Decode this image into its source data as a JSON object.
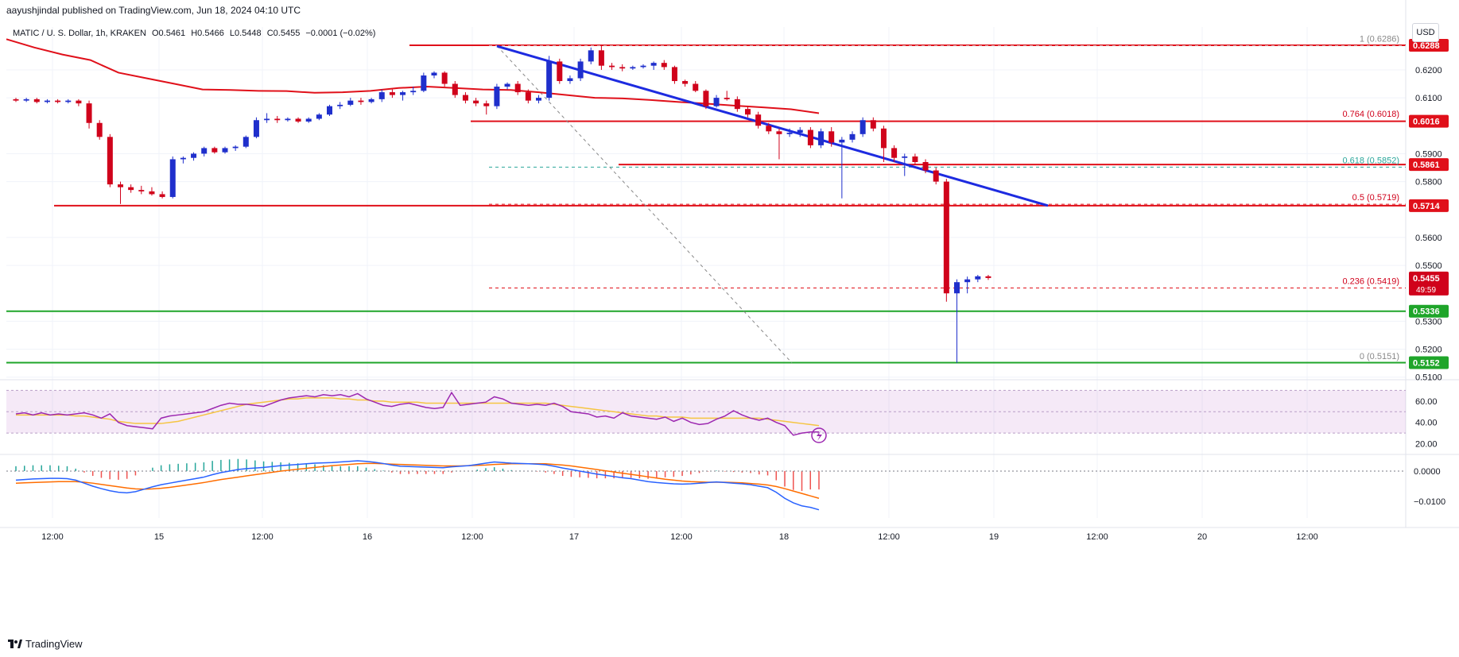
{
  "header": {
    "publisher": "aayushjindal published on TradingView.com, Jun 18, 2024 04:10 UTC"
  },
  "symbol": {
    "name": "MATIC / U. S. Dollar, 1h, KRAKEN",
    "open": "O0.5461",
    "high": "H0.5466",
    "low": "L0.5448",
    "close": "C0.5455",
    "change": "−0.0001 (−0.02%)"
  },
  "currency": "USD",
  "watermark": "TradingView",
  "colors": {
    "up": "#1f2fcc",
    "down": "#d0021b",
    "resistance": "#e0101a",
    "support": "#1fa52a",
    "trend": "#1d2be0",
    "ma": "#e0101a",
    "rsi": "#9c27b0",
    "rsi_ma": "#f5c542",
    "macd": "#2962ff",
    "signal": "#ff6d00"
  },
  "chart_data": {
    "type": "candlestick",
    "ylim": [
      0.5085,
      0.6325
    ],
    "price_ticks": [
      0.62,
      0.61,
      0.59,
      0.58,
      0.56,
      0.55,
      0.53,
      0.52,
      0.51
    ],
    "price_tick_labels": [
      "0.6200",
      "0.6100",
      "0.5900",
      "0.5800",
      "0.5600",
      "0.5500",
      "0.5300",
      "0.5200",
      "0.5100"
    ],
    "x_labels": [
      "12:00",
      "15",
      "12:00",
      "16",
      "12:00",
      "17",
      "12:00",
      "18",
      "12:00",
      "19",
      "12:00",
      "20",
      "12:00"
    ],
    "candles": [
      [
        0.6095,
        0.61,
        0.6085,
        0.609
      ],
      [
        0.609,
        0.61,
        0.6085,
        0.6095
      ],
      [
        0.6095,
        0.61,
        0.608,
        0.6085
      ],
      [
        0.6085,
        0.6095,
        0.608,
        0.609
      ],
      [
        0.609,
        0.6095,
        0.608,
        0.6085
      ],
      [
        0.6085,
        0.6095,
        0.608,
        0.609
      ],
      [
        0.609,
        0.6095,
        0.607,
        0.608
      ],
      [
        0.608,
        0.609,
        0.599,
        0.601
      ],
      [
        0.601,
        0.602,
        0.595,
        0.596
      ],
      [
        0.596,
        0.597,
        0.578,
        0.579
      ],
      [
        0.579,
        0.58,
        0.572,
        0.578
      ],
      [
        0.578,
        0.579,
        0.576,
        0.577
      ],
      [
        0.577,
        0.5785,
        0.5755,
        0.5765
      ],
      [
        0.5765,
        0.578,
        0.575,
        0.5755
      ],
      [
        0.5755,
        0.5765,
        0.574,
        0.5745
      ],
      [
        0.5745,
        0.589,
        0.574,
        0.588
      ],
      [
        0.588,
        0.589,
        0.5865,
        0.5885
      ],
      [
        0.5885,
        0.5905,
        0.5875,
        0.59
      ],
      [
        0.59,
        0.5925,
        0.589,
        0.592
      ],
      [
        0.592,
        0.5925,
        0.59,
        0.5905
      ],
      [
        0.5905,
        0.5925,
        0.59,
        0.592
      ],
      [
        0.592,
        0.593,
        0.591,
        0.5925
      ],
      [
        0.5925,
        0.5965,
        0.592,
        0.596
      ],
      [
        0.596,
        0.603,
        0.5955,
        0.602
      ],
      [
        0.602,
        0.6045,
        0.601,
        0.6025
      ],
      [
        0.6025,
        0.6035,
        0.601,
        0.602
      ],
      [
        0.602,
        0.603,
        0.6015,
        0.6025
      ],
      [
        0.6025,
        0.603,
        0.601,
        0.6015
      ],
      [
        0.6015,
        0.603,
        0.601,
        0.6025
      ],
      [
        0.6025,
        0.6045,
        0.602,
        0.604
      ],
      [
        0.604,
        0.6075,
        0.6035,
        0.607
      ],
      [
        0.607,
        0.6085,
        0.606,
        0.6075
      ],
      [
        0.6075,
        0.61,
        0.607,
        0.609
      ],
      [
        0.609,
        0.61,
        0.6075,
        0.6085
      ],
      [
        0.6085,
        0.61,
        0.608,
        0.6095
      ],
      [
        0.6095,
        0.613,
        0.6085,
        0.612
      ],
      [
        0.612,
        0.613,
        0.61,
        0.611
      ],
      [
        0.611,
        0.6125,
        0.609,
        0.612
      ],
      [
        0.612,
        0.614,
        0.611,
        0.6125
      ],
      [
        0.6125,
        0.619,
        0.612,
        0.618
      ],
      [
        0.618,
        0.6195,
        0.617,
        0.619
      ],
      [
        0.619,
        0.6195,
        0.614,
        0.615
      ],
      [
        0.615,
        0.616,
        0.61,
        0.611
      ],
      [
        0.611,
        0.612,
        0.608,
        0.609
      ],
      [
        0.609,
        0.61,
        0.607,
        0.608
      ],
      [
        0.608,
        0.609,
        0.604,
        0.607
      ],
      [
        0.607,
        0.615,
        0.606,
        0.614
      ],
      [
        0.614,
        0.6155,
        0.613,
        0.615
      ],
      [
        0.615,
        0.616,
        0.611,
        0.612
      ],
      [
        0.612,
        0.613,
        0.608,
        0.609
      ],
      [
        0.609,
        0.611,
        0.608,
        0.61
      ],
      [
        0.61,
        0.625,
        0.609,
        0.623
      ],
      [
        0.623,
        0.624,
        0.615,
        0.616
      ],
      [
        0.616,
        0.618,
        0.615,
        0.617
      ],
      [
        0.617,
        0.624,
        0.616,
        0.623
      ],
      [
        0.623,
        0.628,
        0.622,
        0.627
      ],
      [
        0.627,
        0.629,
        0.62,
        0.6215
      ],
      [
        0.6215,
        0.6225,
        0.62,
        0.621
      ],
      [
        0.621,
        0.622,
        0.6195,
        0.6205
      ],
      [
        0.6205,
        0.6215,
        0.62,
        0.621
      ],
      [
        0.621,
        0.622,
        0.6205,
        0.6215
      ],
      [
        0.6215,
        0.623,
        0.62,
        0.6225
      ],
      [
        0.6225,
        0.6235,
        0.62,
        0.621
      ],
      [
        0.621,
        0.6215,
        0.615,
        0.616
      ],
      [
        0.616,
        0.6165,
        0.614,
        0.615
      ],
      [
        0.615,
        0.616,
        0.612,
        0.6125
      ],
      [
        0.6125,
        0.613,
        0.606,
        0.607
      ],
      [
        0.607,
        0.611,
        0.6065,
        0.61
      ],
      [
        0.61,
        0.6125,
        0.609,
        0.6095
      ],
      [
        0.6095,
        0.6105,
        0.605,
        0.606
      ],
      [
        0.606,
        0.607,
        0.603,
        0.604
      ],
      [
        0.604,
        0.605,
        0.599,
        0.6
      ],
      [
        0.6,
        0.601,
        0.597,
        0.598
      ],
      [
        0.598,
        0.599,
        0.588,
        0.597
      ],
      [
        0.597,
        0.599,
        0.596,
        0.5975
      ],
      [
        0.5975,
        0.5995,
        0.596,
        0.5985
      ],
      [
        0.5985,
        0.5995,
        0.592,
        0.593
      ],
      [
        0.593,
        0.599,
        0.592,
        0.598
      ],
      [
        0.598,
        0.5995,
        0.5925,
        0.594
      ],
      [
        0.594,
        0.596,
        0.574,
        0.595
      ],
      [
        0.595,
        0.598,
        0.594,
        0.597
      ],
      [
        0.597,
        0.603,
        0.596,
        0.602
      ],
      [
        0.602,
        0.603,
        0.598,
        0.599
      ],
      [
        0.599,
        0.6,
        0.587,
        0.592
      ],
      [
        0.592,
        0.593,
        0.587,
        0.5885
      ],
      [
        0.5885,
        0.59,
        0.582,
        0.589
      ],
      [
        0.589,
        0.59,
        0.586,
        0.587
      ],
      [
        0.587,
        0.588,
        0.583,
        0.584
      ],
      [
        0.584,
        0.585,
        0.579,
        0.58
      ],
      [
        0.58,
        0.581,
        0.537,
        0.54
      ],
      [
        0.54,
        0.545,
        0.5151,
        0.544
      ],
      [
        0.544,
        0.546,
        0.54,
        0.545
      ],
      [
        0.545,
        0.5466,
        0.544,
        0.5461
      ],
      [
        0.5461,
        0.5466,
        0.5448,
        0.5455
      ]
    ],
    "moving_average": [
      [
        0.63,
        0.631
      ],
      [
        0.628,
        0.628
      ],
      [
        0.624,
        0.6255
      ],
      [
        0.62,
        0.6235
      ],
      [
        0.617,
        0.619
      ],
      [
        0.614,
        0.617
      ],
      [
        0.61,
        0.615
      ],
      [
        0.606,
        0.613
      ],
      [
        0.602,
        0.6128
      ],
      [
        0.598,
        0.6125
      ],
      [
        0.594,
        0.6124
      ],
      [
        0.59,
        0.6118
      ],
      [
        0.586,
        0.612
      ],
      [
        0.582,
        0.6125
      ],
      [
        0.578,
        0.6135
      ],
      [
        0.574,
        0.614
      ],
      [
        0.57,
        0.6135
      ],
      [
        0.566,
        0.613
      ],
      [
        0.562,
        0.6128
      ],
      [
        0.558,
        0.612
      ],
      [
        0.554,
        0.611
      ],
      [
        0.55,
        0.61
      ],
      [
        0.546,
        0.6098
      ],
      [
        0.542,
        0.6092
      ],
      [
        0.54,
        0.6085
      ],
      [
        0.538,
        0.6079
      ],
      [
        0.536,
        0.6072
      ],
      [
        0.5345,
        0.6066
      ],
      [
        0.533,
        0.6059
      ],
      [
        0.532,
        0.6045
      ]
    ],
    "levels": {
      "resistance_1": {
        "value": 0.6288,
        "label": "0.6288"
      },
      "resistance_2": {
        "value": 0.6016,
        "label": "0.6016"
      },
      "resistance_3": {
        "value": 0.5861,
        "label": "0.5861"
      },
      "resistance_4": {
        "value": 0.5714,
        "label": "0.5714"
      },
      "support_1": {
        "value": 0.5336,
        "label": "0.5336"
      },
      "support_2": {
        "value": 0.5152,
        "label": "0.5152"
      }
    },
    "current_price": {
      "value": 0.5455,
      "label": "0.5455",
      "timer": "49:59"
    },
    "fibonacci": [
      {
        "value": 0.6286,
        "label": "1 (0.6286)"
      },
      {
        "value": 0.6018,
        "label": "0.764 (0.6018)"
      },
      {
        "value": 0.5852,
        "label": "0.618 (0.5852)"
      },
      {
        "value": 0.5719,
        "label": "0.5 (0.5719)"
      },
      {
        "value": 0.5419,
        "label": "0.236 (0.5419)"
      },
      {
        "value": 0.5151,
        "label": "0 (0.5151)"
      }
    ],
    "trend_line": {
      "from": [
        0.6285,
        0.0
      ],
      "to": [
        0.5714,
        1.0
      ]
    },
    "rsi": {
      "ticks": [
        60.0,
        40.0,
        20.0
      ],
      "tick_labels": [
        "60.00",
        "40.00",
        "20.00"
      ],
      "band": [
        30,
        70
      ],
      "values": [
        48,
        49,
        47,
        49,
        47,
        48,
        47,
        48,
        49,
        47,
        44,
        48,
        40,
        37,
        36,
        35,
        34,
        44,
        46,
        47,
        48,
        49,
        50,
        53,
        56,
        58,
        57,
        57,
        56,
        55,
        58,
        61,
        63,
        64,
        65,
        64,
        66,
        65,
        66,
        64,
        67,
        62,
        59,
        56,
        55,
        57,
        58,
        56,
        54,
        53,
        54,
        68,
        56,
        57,
        58,
        59,
        64,
        62,
        58,
        57,
        56,
        57,
        56,
        58,
        55,
        50,
        49,
        48,
        45,
        46,
        44,
        49,
        46,
        45,
        44,
        43,
        45,
        41,
        44,
        40,
        38,
        39,
        43,
        46,
        51,
        47,
        44,
        42,
        44,
        40,
        37,
        28,
        30,
        31,
        31
      ],
      "ma": [
        47,
        47,
        47,
        47,
        47,
        47,
        47,
        46,
        46,
        45,
        44,
        43,
        41,
        40,
        39,
        39,
        39,
        39,
        40,
        41,
        43,
        45,
        47,
        49,
        51,
        53,
        55,
        57,
        58,
        59,
        60,
        61,
        62,
        62,
        63,
        63,
        63,
        63,
        62,
        62,
        61,
        61,
        60,
        60,
        59,
        59,
        59,
        59,
        58,
        58,
        58,
        58,
        58,
        58,
        58,
        58,
        58,
        58,
        58,
        58,
        58,
        58,
        58,
        57,
        56,
        55,
        54,
        53,
        52,
        51,
        50,
        49,
        48,
        47,
        46,
        46,
        45,
        45,
        45,
        44,
        44,
        44,
        44,
        44,
        44,
        44,
        44,
        44,
        43,
        42,
        41,
        40,
        39,
        38,
        37
      ]
    },
    "macd": {
      "ticks": [
        0.0,
        -0.01
      ],
      "tick_labels": [
        "0.0000",
        "−0.0100"
      ],
      "ylim": [
        -0.0155,
        0.0055
      ],
      "macd": [
        -0.003,
        -0.0028,
        -0.0026,
        -0.0025,
        -0.0024,
        -0.0024,
        -0.0025,
        -0.003,
        -0.004,
        -0.005,
        -0.0058,
        -0.0065,
        -0.007,
        -0.0072,
        -0.0068,
        -0.006,
        -0.0052,
        -0.0045,
        -0.004,
        -0.0035,
        -0.003,
        -0.0025,
        -0.002,
        -0.0012,
        -0.0005,
        0.0,
        0.0005,
        0.0008,
        0.001,
        0.0012,
        0.0015,
        0.0018,
        0.002,
        0.0022,
        0.0024,
        0.0026,
        0.0027,
        0.0028,
        0.003,
        0.0032,
        0.0034,
        0.0032,
        0.0029,
        0.0025,
        0.002,
        0.0016,
        0.0015,
        0.0014,
        0.0013,
        0.0012,
        0.0011,
        0.0014,
        0.0016,
        0.0018,
        0.0022,
        0.0026,
        0.003,
        0.0028,
        0.0026,
        0.0025,
        0.0024,
        0.0023,
        0.0021,
        0.0016,
        0.001,
        0.0005,
        0.0,
        -0.0005,
        -0.001,
        -0.0014,
        -0.0018,
        -0.0022,
        -0.0025,
        -0.003,
        -0.0035,
        -0.0038,
        -0.004,
        -0.0042,
        -0.0043,
        -0.0042,
        -0.004,
        -0.0038,
        -0.0036,
        -0.0038,
        -0.004,
        -0.0042,
        -0.0045,
        -0.005,
        -0.0055,
        -0.007,
        -0.009,
        -0.0105,
        -0.0115,
        -0.012,
        -0.0128
      ],
      "signal": [
        -0.004,
        -0.0039,
        -0.0038,
        -0.0037,
        -0.0036,
        -0.0035,
        -0.0035,
        -0.0035,
        -0.0037,
        -0.004,
        -0.0044,
        -0.0048,
        -0.0052,
        -0.0056,
        -0.0059,
        -0.006,
        -0.0059,
        -0.0057,
        -0.0054,
        -0.005,
        -0.0046,
        -0.0042,
        -0.0038,
        -0.0033,
        -0.0028,
        -0.0024,
        -0.002,
        -0.0016,
        -0.0012,
        -0.0008,
        -0.0004,
        0.0,
        0.0003,
        0.0006,
        0.0009,
        0.0012,
        0.0015,
        0.0018,
        0.002,
        0.0022,
        0.0024,
        0.0025,
        0.0025,
        0.0024,
        0.0023,
        0.0022,
        0.0021,
        0.002,
        0.0019,
        0.0018,
        0.0017,
        0.0017,
        0.0017,
        0.0018,
        0.0019,
        0.002,
        0.0022,
        0.0023,
        0.0024,
        0.0024,
        0.0024,
        0.0024,
        0.0024,
        0.0022,
        0.002,
        0.0017,
        0.0013,
        0.0009,
        0.0005,
        0.0001,
        -0.0003,
        -0.0007,
        -0.0011,
        -0.0015,
        -0.0019,
        -0.0023,
        -0.0027,
        -0.003,
        -0.0033,
        -0.0035,
        -0.0036,
        -0.0037,
        -0.0037,
        -0.0037,
        -0.0038,
        -0.0039,
        -0.0041,
        -0.0043,
        -0.0046,
        -0.0051,
        -0.0058,
        -0.0066,
        -0.0074,
        -0.0082,
        -0.009
      ]
    }
  }
}
